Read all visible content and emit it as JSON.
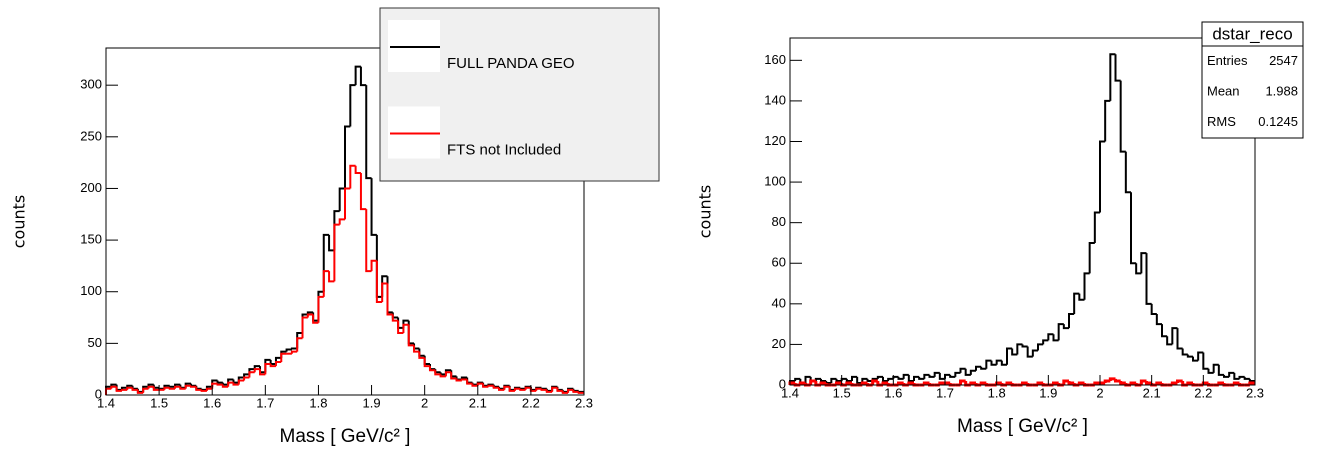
{
  "chart_data": [
    {
      "type": "histogram",
      "x_label": "Mass [ GeV/c² ]",
      "y_label": "counts",
      "bins": [
        1.4,
        1.41,
        1.42,
        1.43,
        1.44,
        1.45,
        1.46,
        1.47,
        1.48,
        1.49,
        1.5,
        1.51,
        1.52,
        1.53,
        1.54,
        1.55,
        1.56,
        1.57,
        1.58,
        1.59,
        1.6,
        1.61,
        1.62,
        1.63,
        1.64,
        1.65,
        1.66,
        1.67,
        1.68,
        1.69,
        1.7,
        1.71,
        1.72,
        1.73,
        1.74,
        1.75,
        1.76,
        1.77,
        1.78,
        1.79,
        1.8,
        1.81,
        1.82,
        1.83,
        1.84,
        1.85,
        1.86,
        1.87,
        1.88,
        1.89,
        1.9,
        1.91,
        1.92,
        1.93,
        1.94,
        1.95,
        1.96,
        1.97,
        1.98,
        1.99,
        2,
        2.01,
        2.02,
        2.03,
        2.04,
        2.05,
        2.06,
        2.07,
        2.08,
        2.09,
        2.1,
        2.11,
        2.12,
        2.13,
        2.14,
        2.15,
        2.16,
        2.17,
        2.18,
        2.19,
        2.2,
        2.21,
        2.22,
        2.23,
        2.24,
        2.25,
        2.26,
        2.27,
        2.28,
        2.29,
        2.3
      ],
      "series": [
        {
          "name": "FULL PANDA GEO",
          "color": "#000000",
          "values": [
            8,
            10,
            5,
            7,
            9,
            6,
            3,
            8,
            10,
            7,
            6,
            9,
            8,
            10,
            7,
            11,
            9,
            6,
            5,
            8,
            14,
            12,
            10,
            15,
            12,
            17,
            20,
            25,
            28,
            22,
            34,
            30,
            36,
            42,
            44,
            45,
            60,
            78,
            80,
            72,
            100,
            155,
            140,
            178,
            200,
            260,
            300,
            318,
            300,
            210,
            155,
            95,
            115,
            80,
            75,
            65,
            72,
            50,
            45,
            38,
            30,
            25,
            22,
            20,
            24,
            18,
            15,
            17,
            12,
            10,
            12,
            9,
            10,
            8,
            6,
            9,
            5,
            7,
            6,
            8,
            5,
            7,
            6,
            4,
            8,
            5,
            3,
            6,
            4,
            3
          ]
        },
        {
          "name": "FTS not Included",
          "color": "#ff0000",
          "values": [
            6,
            8,
            4,
            5,
            7,
            5,
            2,
            6,
            8,
            5,
            5,
            7,
            6,
            8,
            6,
            9,
            8,
            5,
            4,
            6,
            11,
            10,
            8,
            12,
            10,
            14,
            17,
            22,
            25,
            20,
            30,
            28,
            32,
            40,
            40,
            42,
            55,
            75,
            78,
            70,
            95,
            120,
            110,
            165,
            170,
            200,
            222,
            215,
            180,
            120,
            130,
            90,
            108,
            78,
            72,
            60,
            68,
            48,
            42,
            36,
            28,
            24,
            20,
            18,
            22,
            16,
            14,
            15,
            11,
            9,
            11,
            8,
            9,
            7,
            5,
            8,
            4,
            6,
            5,
            7,
            4,
            6,
            5,
            3,
            7,
            4,
            2,
            5,
            3,
            2
          ]
        }
      ],
      "xlim": [
        1.4,
        2.3
      ],
      "xticks": [
        1.4,
        1.5,
        1.6,
        1.7,
        1.8,
        1.9,
        2,
        2.1,
        2.2,
        2.3
      ],
      "ylim": [
        0,
        336
      ],
      "yticks": [
        0,
        50,
        100,
        150,
        200,
        250,
        300
      ],
      "legend": "top-right"
    },
    {
      "type": "histogram",
      "x_label": "Mass [ GeV/c² ]",
      "y_label": "counts",
      "bins": [
        1.4,
        1.41,
        1.42,
        1.43,
        1.44,
        1.45,
        1.46,
        1.47,
        1.48,
        1.49,
        1.5,
        1.51,
        1.52,
        1.53,
        1.54,
        1.55,
        1.56,
        1.57,
        1.58,
        1.59,
        1.6,
        1.61,
        1.62,
        1.63,
        1.64,
        1.65,
        1.66,
        1.67,
        1.68,
        1.69,
        1.7,
        1.71,
        1.72,
        1.73,
        1.74,
        1.75,
        1.76,
        1.77,
        1.78,
        1.79,
        1.8,
        1.81,
        1.82,
        1.83,
        1.84,
        1.85,
        1.86,
        1.87,
        1.88,
        1.89,
        1.9,
        1.91,
        1.92,
        1.93,
        1.94,
        1.95,
        1.96,
        1.97,
        1.98,
        1.99,
        2,
        2.01,
        2.02,
        2.03,
        2.04,
        2.05,
        2.06,
        2.07,
        2.08,
        2.09,
        2.1,
        2.11,
        2.12,
        2.13,
        2.14,
        2.15,
        2.16,
        2.17,
        2.18,
        2.19,
        2.2,
        2.21,
        2.22,
        2.23,
        2.24,
        2.25,
        2.26,
        2.27,
        2.28,
        2.29,
        2.3
      ],
      "series": [
        {
          "color": "#000000",
          "values": [
            2,
            3,
            1,
            4,
            2,
            3,
            2,
            1,
            3,
            2,
            3,
            2,
            4,
            1,
            3,
            2,
            3,
            4,
            2,
            3,
            4,
            3,
            5,
            2,
            4,
            3,
            5,
            4,
            6,
            3,
            5,
            4,
            6,
            8,
            5,
            7,
            9,
            8,
            12,
            10,
            12,
            10,
            18,
            15,
            20,
            19,
            14,
            17,
            20,
            22,
            25,
            22,
            30,
            28,
            35,
            45,
            42,
            55,
            70,
            85,
            120,
            140,
            163,
            150,
            115,
            95,
            60,
            55,
            65,
            40,
            35,
            30,
            24,
            20,
            28,
            18,
            15,
            14,
            12,
            16,
            8,
            6,
            10,
            5,
            4,
            6,
            3,
            4,
            3,
            2
          ]
        },
        {
          "color": "#ff0000",
          "values": [
            1,
            0,
            1,
            0,
            2,
            0,
            1,
            0,
            0,
            1,
            0,
            1,
            0,
            0,
            1,
            0,
            2,
            0,
            1,
            0,
            0,
            1,
            0,
            1,
            0,
            0,
            1,
            0,
            0,
            1,
            1,
            0,
            0,
            2,
            0,
            1,
            0,
            1,
            0,
            0,
            1,
            0,
            1,
            0,
            0,
            1,
            0,
            0,
            1,
            0,
            0,
            1,
            0,
            2,
            1,
            0,
            1,
            0,
            0,
            1,
            1,
            2,
            3,
            2,
            1,
            0,
            1,
            0,
            2,
            1,
            0,
            1,
            0,
            0,
            1,
            2,
            0,
            1,
            0,
            0,
            1,
            0,
            0,
            1,
            0,
            0,
            1,
            0,
            0,
            1
          ]
        }
      ],
      "xlim": [
        1.4,
        2.3
      ],
      "xticks": [
        1.4,
        1.5,
        1.6,
        1.7,
        1.8,
        1.9,
        2,
        2.1,
        2.2,
        2.3
      ],
      "ylim": [
        0,
        171
      ],
      "yticks": [
        0,
        20,
        40,
        60,
        80,
        100,
        120,
        140,
        160
      ],
      "stats": {
        "title": "dstar_reco",
        "rows": [
          {
            "label": "Entries",
            "value": 2547
          },
          {
            "label": "Mean",
            "value": 1.988
          },
          {
            "label": "RMS",
            "value": 0.1245
          }
        ]
      }
    }
  ]
}
